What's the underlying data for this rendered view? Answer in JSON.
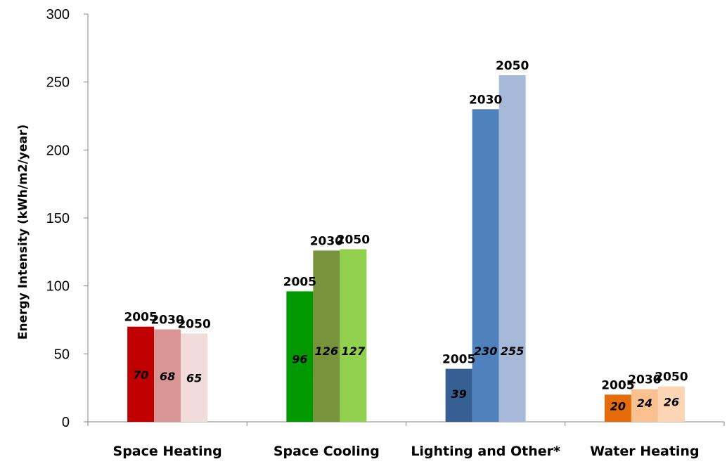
{
  "chart_data": {
    "type": "bar",
    "title": "",
    "xlabel": "",
    "ylabel": "Energy Intensity (kWh/m2/year)",
    "ylim": [
      0,
      300
    ],
    "yticks": [
      0,
      50,
      100,
      150,
      200,
      250,
      300
    ],
    "grid": false,
    "legend": "none",
    "groups": [
      {
        "category": "Space Heating",
        "bars": [
          {
            "label": "2005",
            "value": 70,
            "value_label": "70",
            "color": "#c00000"
          },
          {
            "label": "2030",
            "value": 68,
            "value_label": "68",
            "color": "#d99694"
          },
          {
            "label": "2050",
            "value": 65,
            "value_label": "65",
            "color": "#f2dcdb"
          }
        ]
      },
      {
        "category": "Space Cooling",
        "bars": [
          {
            "label": "2005",
            "value": 96,
            "value_label": "96",
            "color": "#009900"
          },
          {
            "label": "2030",
            "value": 126,
            "value_label": "126",
            "color": "#77933c"
          },
          {
            "label": "2050",
            "value": 127,
            "value_label": "127",
            "color": "#92d050"
          }
        ]
      },
      {
        "category": "Lighting and Other*",
        "bars": [
          {
            "label": "2005",
            "value": 39,
            "value_label": "39",
            "color": "#376092"
          },
          {
            "label": "2030",
            "value": 230,
            "value_label": "230",
            "color": "#4f81bd"
          },
          {
            "label": "2050",
            "value": 255,
            "value_label": "255",
            "color": "#a7b9d8"
          }
        ]
      },
      {
        "category": "Water Heating",
        "bars": [
          {
            "label": "2005",
            "value": 20,
            "value_label": "20",
            "color": "#e46c0a"
          },
          {
            "label": "2030",
            "value": 24,
            "value_label": "24",
            "color": "#fac090"
          },
          {
            "label": "2050",
            "value": 26,
            "value_label": "26",
            "color": "#fcd5b5"
          }
        ]
      }
    ]
  }
}
